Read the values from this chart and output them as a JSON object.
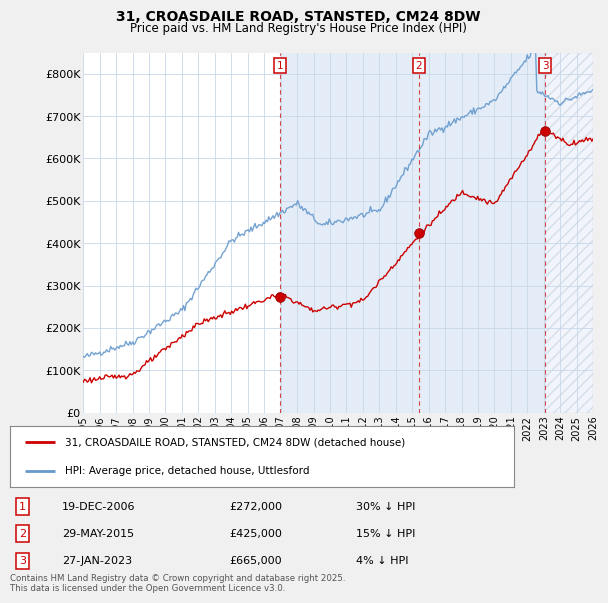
{
  "title_line1": "31, CROASDAILE ROAD, STANSTED, CM24 8DW",
  "title_line2": "Price paid vs. HM Land Registry's House Price Index (HPI)",
  "bg_color": "#f0f0f0",
  "plot_bg_color": "#ffffff",
  "grid_color": "#c8d8e8",
  "red_line_color": "#cc0000",
  "blue_line_color": "#6699cc",
  "sale_marker_color": "#cc0000",
  "sales": [
    {
      "num": 1,
      "date_label": "19-DEC-2006",
      "price": 272000,
      "hpi_pct": "30% ↓ HPI",
      "x_year": 2006.97
    },
    {
      "num": 2,
      "date_label": "29-MAY-2015",
      "price": 425000,
      "hpi_pct": "15% ↓ HPI",
      "x_year": 2015.41
    },
    {
      "num": 3,
      "date_label": "27-JAN-2023",
      "price": 665000,
      "hpi_pct": "4% ↓ HPI",
      "x_year": 2023.07
    }
  ],
  "legend_label_red": "31, CROASDAILE ROAD, STANSTED, CM24 8DW (detached house)",
  "legend_label_blue": "HPI: Average price, detached house, Uttlesford",
  "footnote": "Contains HM Land Registry data © Crown copyright and database right 2025.\nThis data is licensed under the Open Government Licence v3.0.",
  "xlim": [
    1995,
    2026
  ],
  "ylim": [
    0,
    850000
  ],
  "yticks": [
    0,
    100000,
    200000,
    300000,
    400000,
    500000,
    600000,
    700000,
    800000
  ],
  "ytick_labels": [
    "£0",
    "£100K",
    "£200K",
    "£300K",
    "£400K",
    "£500K",
    "£600K",
    "£700K",
    "£800K"
  ]
}
